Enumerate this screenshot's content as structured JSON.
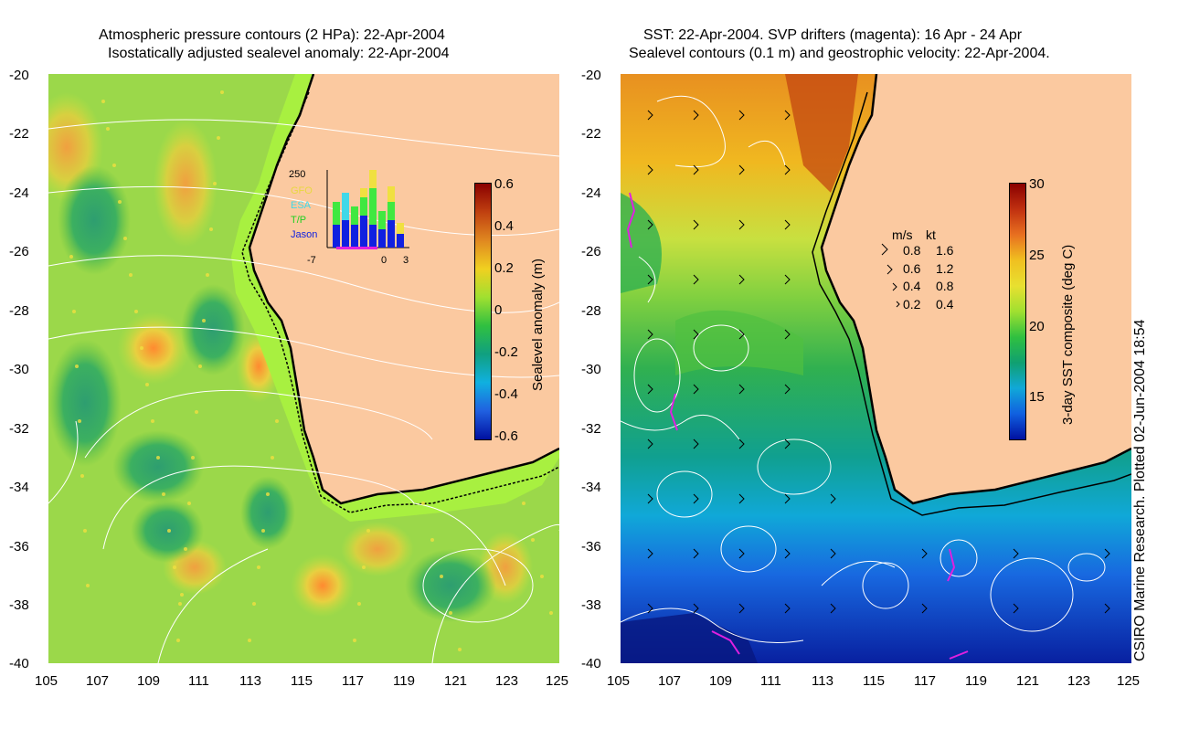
{
  "left": {
    "title_line1": "Atmospheric pressure contours (2 HPa): 22-Apr-2004",
    "title_line2": "Isostatically adjusted sealevel anomaly: 22-Apr-2004",
    "colorbar_label": "Sealevel anomaly (m)",
    "colorbar_ticks": [
      "0.6",
      "0.4",
      "0.2",
      "0",
      "-0.2",
      "-0.4",
      "-0.6"
    ],
    "inset": {
      "y_max": "250",
      "legend": [
        "GFO",
        "ESA",
        "T/P",
        "Jason"
      ],
      "x_ticks": [
        "-7",
        "0",
        "3"
      ]
    }
  },
  "right": {
    "title_line1": "SST: 22-Apr-2004. SVP drifters (magenta): 16 Apr - 24 Apr",
    "title_line2": "Sealevel contours (0.1 m) and geostrophic velocity: 22-Apr-2004.",
    "colorbar_label": "3-day SST composite (deg C)",
    "colorbar_ticks": [
      "30",
      "25",
      "20",
      "15"
    ],
    "velocity_legend": {
      "header_ms": "m/s",
      "header_kt": "kt",
      "rows": [
        {
          "ms": "0.8",
          "kt": "1.6"
        },
        {
          "ms": "0.6",
          "kt": "1.2"
        },
        {
          "ms": "0.4",
          "kt": "0.8"
        },
        {
          "ms": "0.2",
          "kt": "0.4"
        }
      ]
    }
  },
  "y_ticks": [
    "-20",
    "-22",
    "-24",
    "-26",
    "-28",
    "-30",
    "-32",
    "-34",
    "-36",
    "-38",
    "-40"
  ],
  "x_ticks": [
    "105",
    "107",
    "109",
    "111",
    "113",
    "115",
    "117",
    "119",
    "121",
    "123",
    "125"
  ],
  "credit": "CSIRO Marine Research. Plotted 02-Jun-2004 18:54",
  "colors": {
    "land": "#fbc9a0",
    "contour": "#ffffff",
    "coast": "#000000",
    "drifter": "#e020e0"
  }
}
